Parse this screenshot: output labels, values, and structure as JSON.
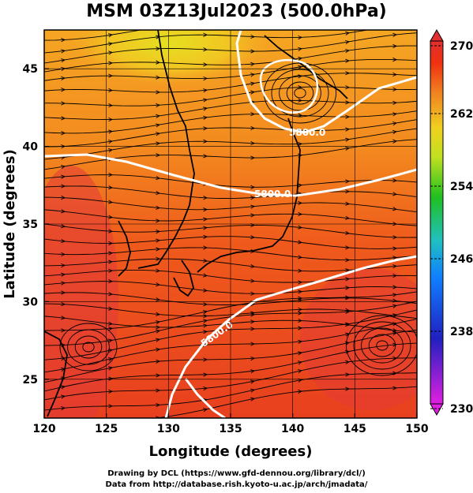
{
  "title": "MSM 03Z13Jul2023 (500.0hPa)",
  "x_axis": {
    "label": "Longitude (degrees)",
    "range": [
      120,
      150
    ],
    "ticks": [
      120,
      125,
      130,
      135,
      140,
      145,
      150
    ]
  },
  "y_axis": {
    "label": "Latitude  (degrees)",
    "range": [
      22.5,
      47.5
    ],
    "ticks": [
      25,
      30,
      35,
      40,
      45
    ]
  },
  "colorbar": {
    "range": [
      230,
      270
    ],
    "ticks": [
      230,
      238,
      246,
      254,
      262,
      270
    ],
    "colors": [
      "#e020e0",
      "#2020c0",
      "#1080ff",
      "#20c0c0",
      "#20c020",
      "#c0e020",
      "#f0d020",
      "#f08020",
      "#f03010",
      "#e03030"
    ]
  },
  "map": {
    "contour_label": "5800.0",
    "contour_value": 5800.0,
    "background_colors": {
      "warm": "#e8401e",
      "mid": "#f06a1c",
      "cool": "#f5a623",
      "cold": "#e6e020",
      "hot": "#e23a3a"
    },
    "contour_color": "#ffffff",
    "streamline_color": "#000000",
    "coast_color": "#000000"
  },
  "credits": {
    "line1": "Drawing by DCL (https://www.gfd-dennou.org/library/dcl/)",
    "line2": "Data from http://database.rish.kyoto-u.ac.jp/arch/jmadata/"
  }
}
